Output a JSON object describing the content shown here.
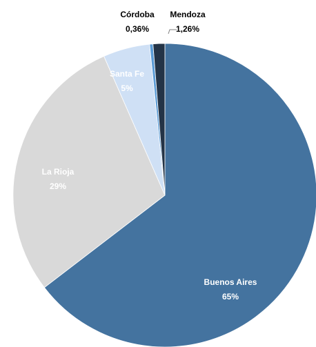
{
  "chart_data": {
    "type": "pie",
    "categories": [
      "Buenos Aires",
      "La Rioja",
      "Santa Fe",
      "Córdoba",
      "Mendoza"
    ],
    "values": [
      65,
      29,
      5,
      0.36,
      1.26
    ],
    "value_labels": [
      "65%",
      "29%",
      "5%",
      "0,36%",
      "1,26%"
    ],
    "colors": [
      "#44739f",
      "#d9d9d9",
      "#cfe0f5",
      "#5b9bd5",
      "#243447"
    ]
  }
}
